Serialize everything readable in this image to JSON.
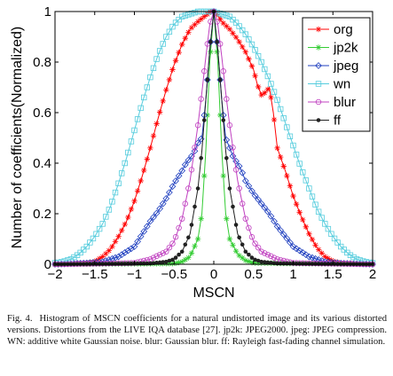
{
  "chart_data": {
    "type": "line",
    "xlabel": "MSCN",
    "ylabel": "Number of coefficients(Normalized)",
    "xlim": [
      -2,
      2
    ],
    "ylim": [
      0,
      1
    ],
    "xticks": [
      "−2",
      "−1.5",
      "−1",
      "−0.5",
      "0",
      "0.5",
      "1",
      "1.5",
      "2"
    ],
    "yticks": [
      "0",
      "0.2",
      "0.4",
      "0.6",
      "0.8",
      "1"
    ],
    "legend_position": "top-right",
    "grid": false,
    "series": [
      {
        "name": "org",
        "color": "#ff0000",
        "marker": "star",
        "points": [
          [
            -2,
            0
          ],
          [
            -1.6,
            0.005
          ],
          [
            -1.5,
            0.01
          ],
          [
            -1.4,
            0.03
          ],
          [
            -1.3,
            0.06
          ],
          [
            -1.2,
            0.11
          ],
          [
            -1.1,
            0.17
          ],
          [
            -1.0,
            0.25
          ],
          [
            -0.9,
            0.35
          ],
          [
            -0.8,
            0.46
          ],
          [
            -0.7,
            0.58
          ],
          [
            -0.6,
            0.69
          ],
          [
            -0.5,
            0.79
          ],
          [
            -0.4,
            0.87
          ],
          [
            -0.3,
            0.93
          ],
          [
            -0.2,
            0.96
          ],
          [
            -0.1,
            0.985
          ],
          [
            -0.03,
            1.0
          ],
          [
            0,
            1.0
          ],
          [
            0.05,
            0.985
          ],
          [
            0.1,
            0.96
          ],
          [
            0.2,
            0.93
          ],
          [
            0.3,
            0.89
          ],
          [
            0.4,
            0.84
          ],
          [
            0.5,
            0.77
          ],
          [
            0.55,
            0.71
          ],
          [
            0.6,
            0.67
          ],
          [
            0.65,
            0.68
          ],
          [
            0.7,
            0.7
          ],
          [
            0.75,
            0.6
          ],
          [
            0.8,
            0.46
          ],
          [
            0.9,
            0.37
          ],
          [
            1.0,
            0.27
          ],
          [
            1.1,
            0.19
          ],
          [
            1.2,
            0.12
          ],
          [
            1.3,
            0.065
          ],
          [
            1.4,
            0.03
          ],
          [
            1.5,
            0.012
          ],
          [
            1.6,
            0.005
          ],
          [
            2,
            0
          ]
        ]
      },
      {
        "name": "jp2k",
        "color": "#33cc33",
        "marker": "star",
        "points": [
          [
            -2,
            0
          ],
          [
            -0.5,
            0.003
          ],
          [
            -0.4,
            0.01
          ],
          [
            -0.3,
            0.03
          ],
          [
            -0.2,
            0.1
          ],
          [
            -0.15,
            0.2
          ],
          [
            -0.1,
            0.45
          ],
          [
            -0.05,
            0.8
          ],
          [
            0,
            1.0
          ],
          [
            0.05,
            0.8
          ],
          [
            0.1,
            0.45
          ],
          [
            0.15,
            0.2
          ],
          [
            0.2,
            0.1
          ],
          [
            0.3,
            0.04
          ],
          [
            0.4,
            0.015
          ],
          [
            0.5,
            0.005
          ],
          [
            2,
            0
          ]
        ]
      },
      {
        "name": "jpeg",
        "color": "#1f3fbf",
        "marker": "diamond",
        "points": [
          [
            -2,
            0
          ],
          [
            -1.6,
            0.005
          ],
          [
            -1.4,
            0.01
          ],
          [
            -1.2,
            0.03
          ],
          [
            -1.0,
            0.07
          ],
          [
            -0.9,
            0.12
          ],
          [
            -0.8,
            0.17
          ],
          [
            -0.7,
            0.21
          ],
          [
            -0.6,
            0.26
          ],
          [
            -0.5,
            0.32
          ],
          [
            -0.4,
            0.37
          ],
          [
            -0.35,
            0.4
          ],
          [
            -0.3,
            0.42
          ],
          [
            -0.25,
            0.44
          ],
          [
            -0.2,
            0.48
          ],
          [
            -0.15,
            0.5
          ],
          [
            -0.1,
            0.65
          ],
          [
            -0.05,
            0.85
          ],
          [
            0,
            1.0
          ],
          [
            0.05,
            0.85
          ],
          [
            0.1,
            0.65
          ],
          [
            0.15,
            0.5
          ],
          [
            0.2,
            0.46
          ],
          [
            0.25,
            0.42
          ],
          [
            0.3,
            0.4
          ],
          [
            0.35,
            0.37
          ],
          [
            0.4,
            0.33
          ],
          [
            0.5,
            0.28
          ],
          [
            0.6,
            0.24
          ],
          [
            0.7,
            0.2
          ],
          [
            0.8,
            0.15
          ],
          [
            0.9,
            0.11
          ],
          [
            1.0,
            0.07
          ],
          [
            1.2,
            0.03
          ],
          [
            1.4,
            0.01
          ],
          [
            1.6,
            0.004
          ],
          [
            2,
            0
          ]
        ]
      },
      {
        "name": "wn",
        "color": "#55ccdd",
        "marker": "square",
        "points": [
          [
            -2,
            0.005
          ],
          [
            -1.9,
            0.01
          ],
          [
            -1.8,
            0.02
          ],
          [
            -1.7,
            0.04
          ],
          [
            -1.6,
            0.07
          ],
          [
            -1.5,
            0.11
          ],
          [
            -1.4,
            0.16
          ],
          [
            -1.3,
            0.23
          ],
          [
            -1.2,
            0.32
          ],
          [
            -1.1,
            0.42
          ],
          [
            -1.0,
            0.53
          ],
          [
            -0.9,
            0.64
          ],
          [
            -0.8,
            0.74
          ],
          [
            -0.7,
            0.83
          ],
          [
            -0.6,
            0.9
          ],
          [
            -0.5,
            0.95
          ],
          [
            -0.4,
            0.98
          ],
          [
            -0.3,
            0.99
          ],
          [
            -0.2,
            1.0
          ],
          [
            -0.1,
            1.0
          ],
          [
            0,
            1.0
          ],
          [
            0.1,
            0.99
          ],
          [
            0.2,
            0.98
          ],
          [
            0.3,
            0.95
          ],
          [
            0.4,
            0.91
          ],
          [
            0.5,
            0.86
          ],
          [
            0.6,
            0.8
          ],
          [
            0.7,
            0.73
          ],
          [
            0.8,
            0.65
          ],
          [
            0.9,
            0.56
          ],
          [
            1.0,
            0.47
          ],
          [
            1.1,
            0.38
          ],
          [
            1.2,
            0.3
          ],
          [
            1.3,
            0.22
          ],
          [
            1.4,
            0.16
          ],
          [
            1.5,
            0.11
          ],
          [
            1.6,
            0.07
          ],
          [
            1.7,
            0.04
          ],
          [
            1.8,
            0.02
          ],
          [
            1.9,
            0.01
          ],
          [
            2,
            0.005
          ]
        ]
      },
      {
        "name": "blur",
        "color": "#c040c0",
        "marker": "circle",
        "points": [
          [
            -2,
            0
          ],
          [
            -1.0,
            0.005
          ],
          [
            -0.8,
            0.02
          ],
          [
            -0.6,
            0.05
          ],
          [
            -0.5,
            0.09
          ],
          [
            -0.4,
            0.18
          ],
          [
            -0.3,
            0.33
          ],
          [
            -0.2,
            0.55
          ],
          [
            -0.15,
            0.68
          ],
          [
            -0.1,
            0.82
          ],
          [
            -0.05,
            0.95
          ],
          [
            0,
            1.0
          ],
          [
            0.05,
            0.95
          ],
          [
            0.1,
            0.82
          ],
          [
            0.15,
            0.68
          ],
          [
            0.2,
            0.55
          ],
          [
            0.3,
            0.33
          ],
          [
            0.4,
            0.18
          ],
          [
            0.5,
            0.09
          ],
          [
            0.6,
            0.05
          ],
          [
            0.8,
            0.02
          ],
          [
            1.0,
            0.005
          ],
          [
            2,
            0
          ]
        ]
      },
      {
        "name": "ff",
        "color": "#222222",
        "marker": "dot",
        "points": [
          [
            -2,
            0
          ],
          [
            -0.8,
            0.003
          ],
          [
            -0.6,
            0.01
          ],
          [
            -0.5,
            0.02
          ],
          [
            -0.4,
            0.05
          ],
          [
            -0.3,
            0.12
          ],
          [
            -0.2,
            0.3
          ],
          [
            -0.15,
            0.45
          ],
          [
            -0.1,
            0.65
          ],
          [
            -0.05,
            0.85
          ],
          [
            0,
            1.0
          ],
          [
            0.05,
            0.85
          ],
          [
            0.1,
            0.65
          ],
          [
            0.15,
            0.45
          ],
          [
            0.2,
            0.3
          ],
          [
            0.3,
            0.12
          ],
          [
            0.4,
            0.05
          ],
          [
            0.5,
            0.02
          ],
          [
            0.6,
            0.01
          ],
          [
            0.8,
            0.003
          ],
          [
            2,
            0
          ]
        ]
      }
    ]
  },
  "caption": {
    "label": "Fig. 4.",
    "text": "Histogram of MSCN coefficients for a natural undistorted image and its various distorted versions. Distortions from the LIVE IQA database [27]. jp2k: JPEG2000. jpeg: JPEG compression. WN: additive white Gaussian noise. blur: Gaussian blur. ff: Rayleigh fast-fading channel simulation."
  }
}
